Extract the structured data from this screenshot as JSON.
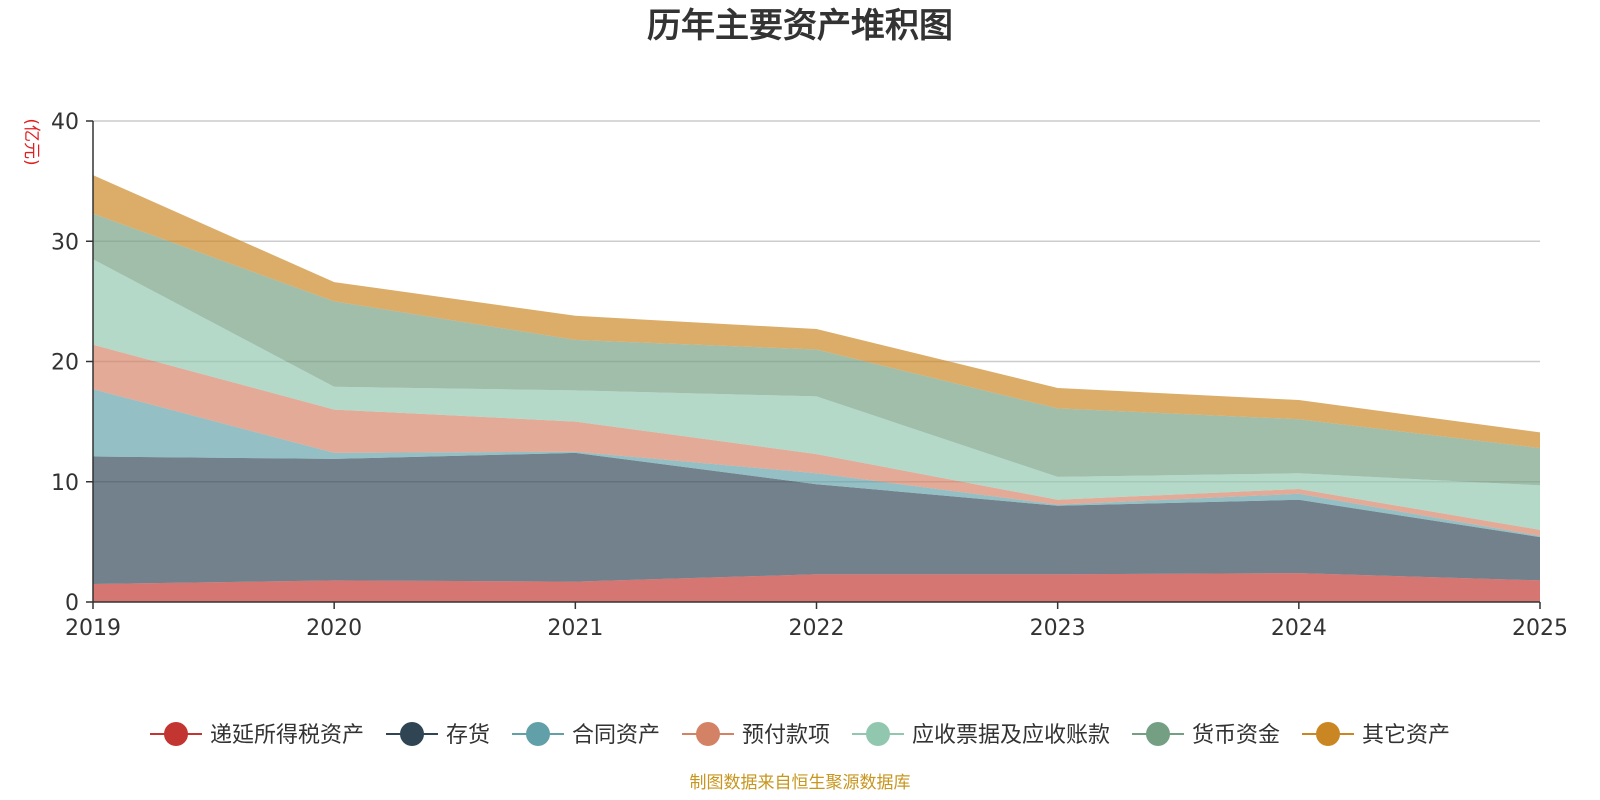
{
  "chart_data": {
    "type": "area",
    "stacked": true,
    "title": "历年主要资产堆积图",
    "ylabel": "(亿元)",
    "xlabel": "",
    "ylim": [
      0,
      40
    ],
    "yticks": [
      0,
      10,
      20,
      30,
      40
    ],
    "x": [
      "2019",
      "2020",
      "2021",
      "2022",
      "2023",
      "2024",
      "2025"
    ],
    "legend_position": "bottom",
    "grid": true,
    "source": "制图数据来自恒生聚源数据库",
    "series": [
      {
        "name": "递延所得税资产",
        "color": "#c23531",
        "values": [
          1.5,
          1.8,
          1.7,
          2.3,
          2.3,
          2.4,
          1.8
        ]
      },
      {
        "name": "存货",
        "color": "#2f4554",
        "values": [
          10.6,
          10.1,
          10.7,
          7.5,
          5.7,
          6.1,
          3.6
        ]
      },
      {
        "name": "合同资产",
        "color": "#61a0a8",
        "values": [
          5.6,
          0.5,
          0.1,
          0.9,
          0.1,
          0.5,
          0.1
        ]
      },
      {
        "name": "预付款项",
        "color": "#d48265",
        "values": [
          3.7,
          3.6,
          2.5,
          1.6,
          0.4,
          0.4,
          0.5
        ]
      },
      {
        "name": "应收票据及应收账款",
        "color": "#91c7ae",
        "values": [
          7.1,
          1.9,
          2.6,
          4.8,
          1.9,
          1.3,
          3.7
        ]
      },
      {
        "name": "货币资金",
        "color": "#749f83",
        "values": [
          3.8,
          7.1,
          4.2,
          3.9,
          5.7,
          4.5,
          3.1
        ]
      },
      {
        "name": "其它资产",
        "color": "#ca8622",
        "values": [
          3.2,
          1.6,
          2.0,
          1.7,
          1.7,
          1.6,
          1.3
        ]
      }
    ]
  }
}
